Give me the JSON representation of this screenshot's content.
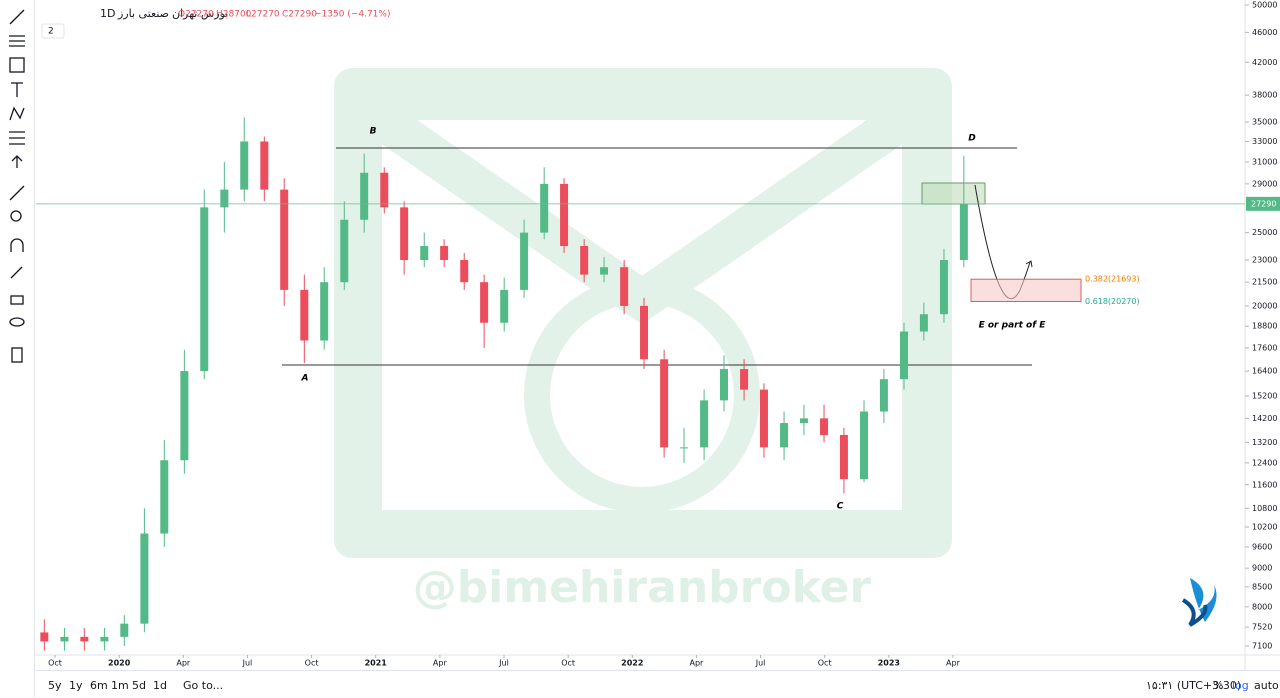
{
  "header": {
    "exchange": "بورس تهران",
    "timeframe": "1D",
    "symbol": "صنعتی بارز",
    "open": "O27270",
    "high": "H28700",
    "low": "L27270",
    "close": "C27290",
    "change": "−1350 (−4.71%)",
    "collapse": "2"
  },
  "annotations": {
    "a": "A",
    "b": "B",
    "c": "C",
    "d": "D",
    "e": "E or part of E",
    "watermark": "@bimehiranbroker"
  },
  "fib_levels": [
    {
      "value": 21693,
      "label": "0.382(21693)"
    },
    {
      "value": 20270,
      "label": "0.618(20270)"
    }
  ],
  "bottom_bar": {
    "ranges": [
      "5y",
      "1y",
      "6m",
      "1m",
      "5d",
      "1d"
    ],
    "goto": "Go to...",
    "clock": "۱۵:۳۱ (UTC+3:30)",
    "percent": "%",
    "log": "log",
    "auto": "auto"
  },
  "chart_data": {
    "type": "candlestick",
    "log_scale": true,
    "up_color": "#53b987",
    "down_color": "#eb4d5c",
    "x": [
      -0.5,
      0.44,
      1.37,
      2.31,
      3.24,
      4.18,
      5.11,
      6.05,
      6.98,
      7.92,
      8.85,
      9.79,
      10.72,
      11.66,
      12.59,
      13.53,
      14.46,
      15.4,
      16.33,
      17.27,
      18.2,
      19.14,
      20.07,
      21.01,
      21.94,
      22.88,
      23.81,
      24.75,
      25.68,
      26.62,
      27.55,
      28.49,
      29.42,
      30.36,
      31.29,
      32.23,
      33.16,
      34.1,
      35.03,
      35.97,
      36.9,
      37.84,
      38.77,
      39.71,
      40.64,
      41.58,
      42.51
    ],
    "open": [
      7400,
      7200,
      7300,
      7200,
      7300,
      7600,
      10000,
      12500,
      16400,
      27000,
      28500,
      33000,
      28500,
      21000,
      18000,
      21500,
      26000,
      30000,
      27000,
      23000,
      24000,
      23000,
      21500,
      19000,
      21000,
      25000,
      29000,
      24000,
      22000,
      22500,
      20000,
      17000,
      13000,
      13000,
      15000,
      16500,
      15500,
      13000,
      14000,
      14200,
      13500,
      11800,
      14500,
      16000,
      18500,
      19500,
      23000
    ],
    "high": [
      7700,
      7500,
      7500,
      7500,
      7800,
      10800,
      13300,
      17500,
      28500,
      31000,
      35500,
      33500,
      29500,
      22000,
      22500,
      27500,
      31800,
      30500,
      27500,
      25000,
      24500,
      23500,
      22000,
      21800,
      26000,
      30500,
      29500,
      24500,
      23200,
      23000,
      20500,
      17500,
      13800,
      15500,
      17200,
      17000,
      15800,
      14500,
      14800,
      14800,
      13800,
      15000,
      16500,
      19000,
      20200,
      23800,
      31600
    ],
    "low": [
      7000,
      7000,
      7000,
      7000,
      7100,
      7400,
      9600,
      12000,
      16000,
      25000,
      27500,
      27500,
      20000,
      16800,
      17500,
      21000,
      25000,
      26500,
      22000,
      22500,
      22500,
      21000,
      17600,
      18500,
      20500,
      24500,
      23500,
      21500,
      21500,
      19500,
      16500,
      12600,
      12400,
      12500,
      14500,
      15000,
      12600,
      12500,
      13500,
      13200,
      11300,
      11700,
      14000,
      15500,
      18000,
      19000,
      22500
    ],
    "close": [
      7200,
      7300,
      7200,
      7300,
      7600,
      10000,
      12500,
      16400,
      27000,
      28500,
      33000,
      28500,
      21000,
      18000,
      21500,
      26000,
      30000,
      27000,
      23000,
      24000,
      23000,
      21500,
      19000,
      21000,
      25000,
      29000,
      24000,
      22000,
      22500,
      20000,
      17000,
      13000,
      13000,
      15000,
      16500,
      15500,
      13000,
      14000,
      14200,
      13500,
      11800,
      14500,
      16000,
      18500,
      19500,
      23000,
      27290
    ],
    "xlim": [
      -0.89,
      55.66
    ],
    "xticks": [
      {
        "value": 0,
        "label": "Oct"
      },
      {
        "value": 3,
        "label": "2020"
      },
      {
        "value": 6,
        "label": "Apr"
      },
      {
        "value": 9,
        "label": "Jul"
      },
      {
        "value": 12,
        "label": "Oct"
      },
      {
        "value": 15,
        "label": "2021"
      },
      {
        "value": 18,
        "label": "Apr"
      },
      {
        "value": 21,
        "label": "Jul"
      },
      {
        "value": 24,
        "label": "Oct"
      },
      {
        "value": 27,
        "label": "2022"
      },
      {
        "value": 30,
        "label": "Apr"
      },
      {
        "value": 33,
        "label": "Jul"
      },
      {
        "value": 36,
        "label": "Oct"
      },
      {
        "value": 39,
        "label": "2023"
      },
      {
        "value": 42,
        "label": "Apr"
      }
    ],
    "ylim": [
      7100,
      50000
    ],
    "yticks": [
      50000,
      46000,
      42000,
      38000,
      35000,
      33000,
      31000,
      29000,
      25000,
      23000,
      21500,
      20000,
      18800,
      17600,
      16400,
      15200,
      14200,
      13200,
      12400,
      11600,
      10800,
      10200,
      9600,
      9000,
      8500,
      8000,
      7520,
      7100
    ]
  }
}
